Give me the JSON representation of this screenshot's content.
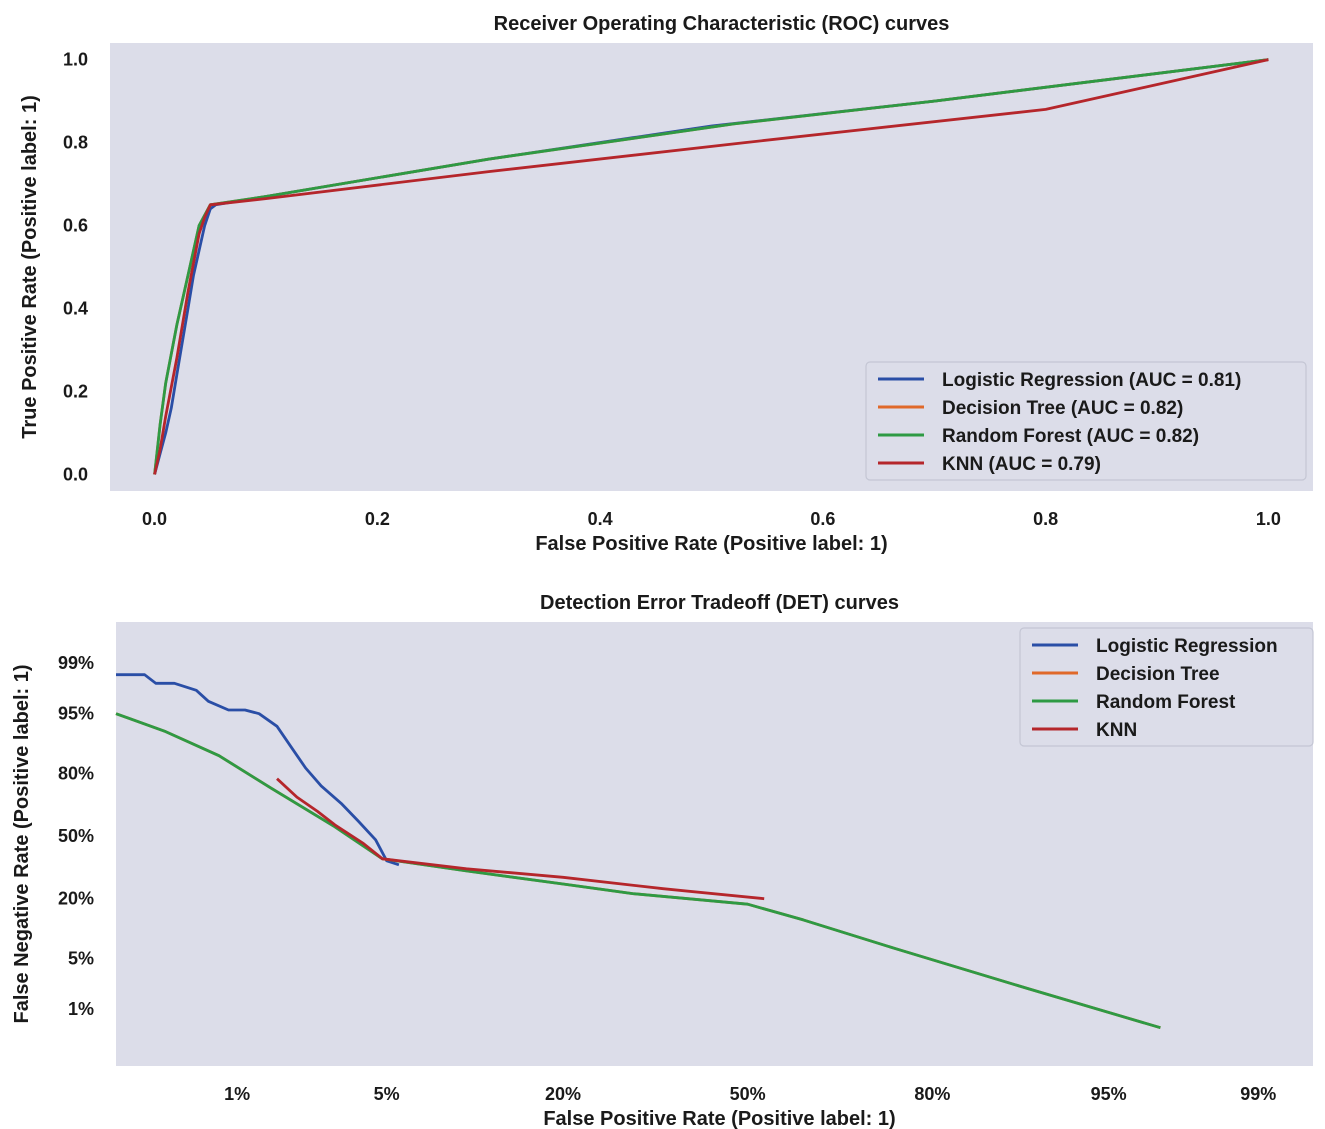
{
  "colors": {
    "panel_bg": "#dcdde9",
    "Logistic Regression": "#2a4ea6",
    "Decision Tree": "#e0692a",
    "Random Forest": "#2e9a44",
    "KNN": "#b5262b"
  },
  "chart_data": [
    {
      "type": "line",
      "title": "Receiver Operating Characteristic (ROC) curves",
      "xlabel": "False Positive Rate (Positive label: 1)",
      "ylabel": "True Positive Rate (Positive label: 1)",
      "xlim": [
        -0.04,
        1.04
      ],
      "ylim": [
        -0.04,
        1.04
      ],
      "xticks": [
        0.0,
        0.2,
        0.4,
        0.6,
        0.8,
        1.0
      ],
      "xtick_labels": [
        "0.0",
        "0.2",
        "0.4",
        "0.6",
        "0.8",
        "1.0"
      ],
      "yticks": [
        0.0,
        0.2,
        0.4,
        0.6,
        0.8,
        1.0
      ],
      "ytick_labels": [
        "0.0",
        "0.2",
        "0.4",
        "0.6",
        "0.8",
        "1.0"
      ],
      "grid": false,
      "legend_position": "lower-right",
      "legend": [
        "Logistic Regression (AUC = 0.81)",
        "Decision Tree (AUC = 0.82)",
        "Random Forest (AUC = 0.82)",
        "KNN (AUC = 0.79)"
      ],
      "series": [
        {
          "name": "Logistic Regression",
          "x": [
            0.0,
            0.005,
            0.01,
            0.015,
            0.02,
            0.025,
            0.03,
            0.035,
            0.04,
            0.045,
            0.05,
            0.055,
            0.1,
            0.3,
            0.5,
            0.7,
            1.0
          ],
          "y": [
            0.0,
            0.05,
            0.1,
            0.16,
            0.24,
            0.32,
            0.4,
            0.48,
            0.54,
            0.6,
            0.64,
            0.65,
            0.67,
            0.76,
            0.84,
            0.9,
            1.0
          ]
        },
        {
          "name": "Decision Tree",
          "x": [
            0.0,
            0.005,
            0.01,
            0.02,
            0.03,
            0.04,
            0.05,
            0.1,
            0.3,
            0.52,
            0.7,
            1.0
          ],
          "y": [
            0.0,
            0.12,
            0.22,
            0.36,
            0.48,
            0.6,
            0.65,
            0.67,
            0.76,
            0.845,
            0.9,
            1.0
          ]
        },
        {
          "name": "Random Forest",
          "x": [
            0.0,
            0.005,
            0.01,
            0.02,
            0.03,
            0.04,
            0.05,
            0.1,
            0.3,
            0.52,
            0.7,
            1.0
          ],
          "y": [
            0.0,
            0.12,
            0.22,
            0.36,
            0.48,
            0.6,
            0.65,
            0.67,
            0.76,
            0.845,
            0.9,
            1.0
          ]
        },
        {
          "name": "KNN",
          "x": [
            0.0,
            0.005,
            0.01,
            0.02,
            0.03,
            0.04,
            0.045,
            0.05,
            0.1,
            0.3,
            0.53,
            0.8,
            1.0
          ],
          "y": [
            0.0,
            0.06,
            0.14,
            0.28,
            0.44,
            0.58,
            0.62,
            0.65,
            0.665,
            0.73,
            0.8,
            0.88,
            1.0
          ]
        }
      ]
    },
    {
      "type": "line",
      "title": "Detection Error Tradeoff (DET) curves",
      "xlabel": "False Positive Rate (Positive label: 1)",
      "ylabel": "False Negative Rate (Positive label: 1)",
      "xscale": "probit",
      "yscale": "probit",
      "xlim": [
        0.002,
        0.995
      ],
      "ylim": [
        0.001,
        0.998
      ],
      "xticks": [
        0.01,
        0.05,
        0.2,
        0.5,
        0.8,
        0.95,
        0.99
      ],
      "xtick_labels": [
        "1%",
        "5%",
        "20%",
        "50%",
        "80%",
        "95%",
        "99%"
      ],
      "yticks": [
        0.01,
        0.05,
        0.2,
        0.5,
        0.8,
        0.95,
        0.99
      ],
      "ytick_labels": [
        "1%",
        "5%",
        "20%",
        "50%",
        "80%",
        "95%",
        "99%"
      ],
      "grid": false,
      "legend_position": "upper-right",
      "legend": [
        "Logistic Regression",
        "Decision Tree",
        "Random Forest",
        "KNN"
      ],
      "series": [
        {
          "name": "Logistic Regression",
          "x": [
            0.002,
            0.003,
            0.0035,
            0.0045,
            0.006,
            0.007,
            0.009,
            0.011,
            0.013,
            0.016,
            0.019,
            0.022,
            0.026,
            0.032,
            0.038,
            0.045,
            0.05,
            0.056
          ],
          "y": [
            0.985,
            0.985,
            0.98,
            0.98,
            0.975,
            0.965,
            0.955,
            0.955,
            0.95,
            0.93,
            0.88,
            0.82,
            0.75,
            0.67,
            0.58,
            0.48,
            0.37,
            0.35
          ]
        },
        {
          "name": "Decision Tree",
          "x": [
            0.002,
            0.004,
            0.008,
            0.015,
            0.03,
            0.048,
            0.1,
            0.2,
            0.3,
            0.5,
            0.6,
            0.75,
            0.9,
            0.97
          ],
          "y": [
            0.95,
            0.92,
            0.86,
            0.74,
            0.55,
            0.38,
            0.32,
            0.26,
            0.22,
            0.18,
            0.13,
            0.065,
            0.02,
            0.005
          ]
        },
        {
          "name": "Random Forest",
          "x": [
            0.002,
            0.004,
            0.008,
            0.015,
            0.03,
            0.048,
            0.1,
            0.2,
            0.3,
            0.5,
            0.6,
            0.75,
            0.9,
            0.97
          ],
          "y": [
            0.95,
            0.92,
            0.86,
            0.74,
            0.55,
            0.38,
            0.32,
            0.26,
            0.22,
            0.18,
            0.13,
            0.065,
            0.02,
            0.005
          ]
        },
        {
          "name": "KNN",
          "x": [
            0.016,
            0.02,
            0.025,
            0.03,
            0.04,
            0.048,
            0.1,
            0.2,
            0.35,
            0.53
          ],
          "y": [
            0.78,
            0.7,
            0.63,
            0.56,
            0.46,
            0.38,
            0.33,
            0.29,
            0.24,
            0.2
          ]
        }
      ]
    }
  ]
}
